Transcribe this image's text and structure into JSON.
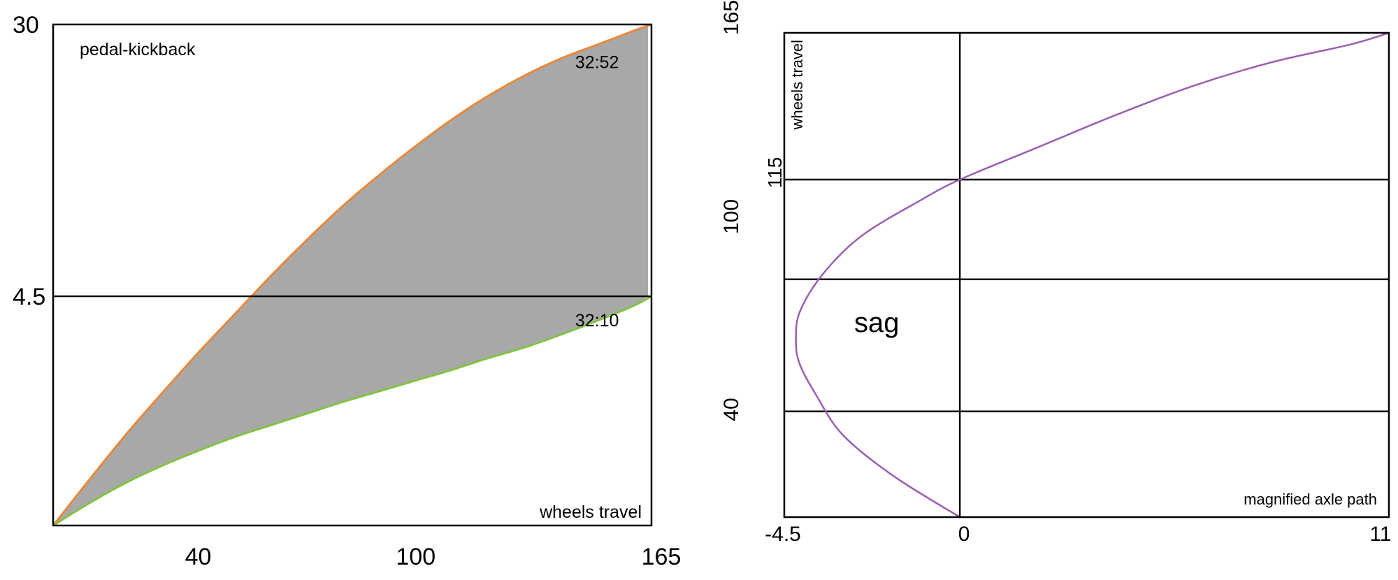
{
  "colors": {
    "fill": "#a9a8a9",
    "kickback_high": "#e8883a",
    "kickback_low": "#82c341",
    "axle_path": "#9b5fb0",
    "frame": "#000000"
  },
  "chart_data": [
    {
      "type": "area",
      "inner_label": "pedal-kickback",
      "xlabel": "wheels travel",
      "x_ticks": [
        "40",
        "100",
        "165"
      ],
      "y_ticks": [
        "30",
        "4.5"
      ],
      "xlim": [
        0,
        165
      ],
      "ylim": [
        -17,
        30
      ],
      "reference_line_y": 4.5,
      "grid": false,
      "series": [
        {
          "name": "32:52",
          "x": [
            0,
            10,
            20,
            30,
            40,
            50,
            60,
            70,
            80,
            90,
            100,
            110,
            120,
            130,
            140,
            150,
            160,
            165
          ],
          "y": [
            -17,
            -12.7,
            -8.5,
            -4.6,
            -0.8,
            2.8,
            6.4,
            9.8,
            13.0,
            15.9,
            18.6,
            21.1,
            23.3,
            25.2,
            26.8,
            28.1,
            29.4,
            30
          ]
        },
        {
          "name": "32:10",
          "x": [
            0,
            10,
            20,
            30,
            40,
            50,
            60,
            70,
            80,
            90,
            100,
            110,
            120,
            130,
            140,
            150,
            160,
            165
          ],
          "y": [
            -17,
            -14.9,
            -13.0,
            -11.4,
            -10.0,
            -8.7,
            -7.6,
            -6.5,
            -5.4,
            -4.4,
            -3.4,
            -2.4,
            -1.3,
            -0.3,
            0.9,
            2.2,
            3.6,
            4.5
          ]
        }
      ]
    },
    {
      "type": "line",
      "inner_label": "magnified axle path",
      "ylabel": "wheels travel",
      "annotation": "sag",
      "x_ticks": [
        "-4.5",
        "0",
        "11"
      ],
      "y_ticks": [
        "165",
        "115",
        "100",
        "40"
      ],
      "xlim": [
        -4.5,
        11
      ],
      "ylim": [
        0,
        165
      ],
      "horizontal_lines": [
        115,
        81,
        36
      ],
      "vertical_lines": [
        0
      ],
      "grid": false,
      "series": [
        {
          "x": [
            0,
            -1.7,
            -3.0,
            -3.7,
            -4.1,
            -4.2,
            -4.1,
            -3.5,
            -2.5,
            -1.0,
            0,
            2.0,
            4.0,
            6.0,
            8.0,
            10.0,
            11.0
          ],
          "y": [
            0,
            14,
            28,
            42,
            52,
            60,
            70,
            83,
            96,
            108,
            115,
            126,
            137,
            147,
            155,
            161,
            165
          ]
        }
      ]
    }
  ]
}
